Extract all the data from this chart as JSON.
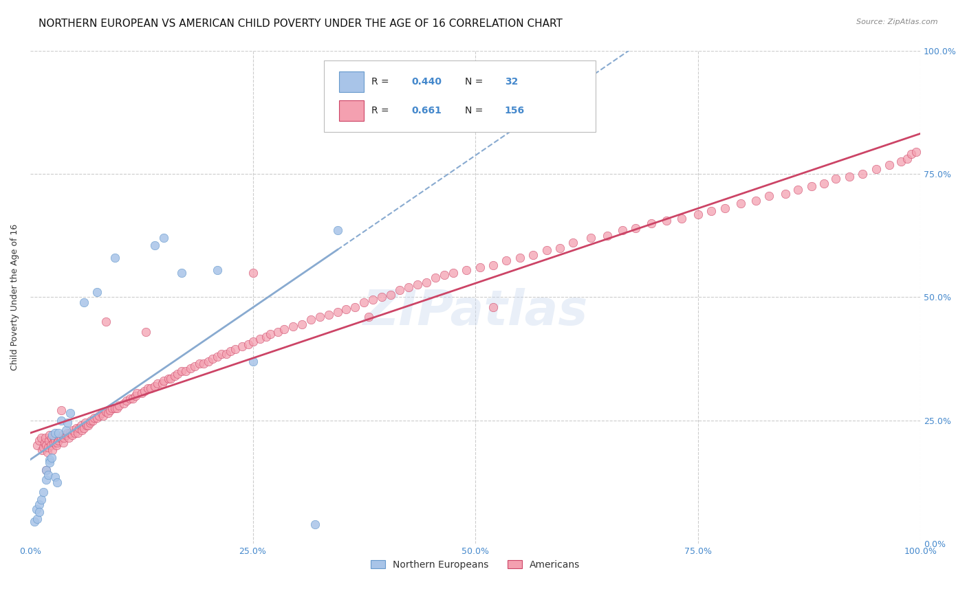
{
  "title": "NORTHERN EUROPEAN VS AMERICAN CHILD POVERTY UNDER THE AGE OF 16 CORRELATION CHART",
  "source": "Source: ZipAtlas.com",
  "ylabel": "Child Poverty Under the Age of 16",
  "xlim": [
    0,
    1
  ],
  "ylim": [
    0,
    1
  ],
  "background_color": "#ffffff",
  "grid_color": "#cccccc",
  "tick_color": "#4488cc",
  "legend_R_color": "#4488cc",
  "title_fontsize": 11,
  "axis_label_fontsize": 9,
  "tick_fontsize": 9,
  "watermark": "ZIPatlas",
  "ne_color": "#a8c4e8",
  "ne_edge_color": "#6699cc",
  "am_color": "#f4a0b0",
  "am_edge_color": "#cc4466",
  "ne_trend_color": "#88aad0",
  "am_trend_color": "#cc4466",
  "ne_x": [
    0.005,
    0.007,
    0.008,
    0.01,
    0.01,
    0.012,
    0.015,
    0.018,
    0.018,
    0.02,
    0.022,
    0.022,
    0.024,
    0.025,
    0.028,
    0.028,
    0.03,
    0.032,
    0.035,
    0.04,
    0.042,
    0.045,
    0.06,
    0.075,
    0.095,
    0.14,
    0.15,
    0.17,
    0.21,
    0.25,
    0.32,
    0.345
  ],
  "ne_y": [
    0.045,
    0.07,
    0.05,
    0.08,
    0.065,
    0.09,
    0.105,
    0.13,
    0.15,
    0.14,
    0.17,
    0.165,
    0.175,
    0.22,
    0.135,
    0.225,
    0.125,
    0.225,
    0.25,
    0.23,
    0.245,
    0.265,
    0.49,
    0.51,
    0.58,
    0.605,
    0.62,
    0.55,
    0.555,
    0.37,
    0.04,
    0.635
  ],
  "am_x": [
    0.008,
    0.01,
    0.012,
    0.013,
    0.015,
    0.016,
    0.017,
    0.018,
    0.019,
    0.02,
    0.021,
    0.022,
    0.023,
    0.024,
    0.025,
    0.026,
    0.027,
    0.028,
    0.029,
    0.03,
    0.032,
    0.033,
    0.035,
    0.036,
    0.037,
    0.038,
    0.04,
    0.042,
    0.043,
    0.045,
    0.047,
    0.048,
    0.05,
    0.052,
    0.053,
    0.055,
    0.057,
    0.058,
    0.06,
    0.062,
    0.063,
    0.065,
    0.067,
    0.068,
    0.07,
    0.072,
    0.075,
    0.077,
    0.08,
    0.082,
    0.085,
    0.087,
    0.09,
    0.092,
    0.095,
    0.097,
    0.1,
    0.105,
    0.108,
    0.112,
    0.115,
    0.118,
    0.12,
    0.125,
    0.128,
    0.132,
    0.135,
    0.14,
    0.143,
    0.148,
    0.15,
    0.155,
    0.158,
    0.162,
    0.165,
    0.17,
    0.175,
    0.18,
    0.185,
    0.19,
    0.195,
    0.2,
    0.205,
    0.21,
    0.215,
    0.22,
    0.225,
    0.23,
    0.238,
    0.245,
    0.25,
    0.258,
    0.265,
    0.27,
    0.278,
    0.285,
    0.295,
    0.305,
    0.315,
    0.325,
    0.335,
    0.345,
    0.355,
    0.365,
    0.375,
    0.385,
    0.395,
    0.405,
    0.415,
    0.425,
    0.435,
    0.445,
    0.455,
    0.465,
    0.475,
    0.49,
    0.505,
    0.52,
    0.535,
    0.55,
    0.565,
    0.58,
    0.595,
    0.61,
    0.63,
    0.648,
    0.665,
    0.68,
    0.698,
    0.715,
    0.732,
    0.75,
    0.765,
    0.78,
    0.798,
    0.815,
    0.83,
    0.848,
    0.862,
    0.878,
    0.892,
    0.905,
    0.92,
    0.935,
    0.95,
    0.965,
    0.978,
    0.985,
    0.99,
    0.995,
    0.018,
    0.035,
    0.085,
    0.13,
    0.25,
    0.38,
    0.52
  ],
  "am_y": [
    0.2,
    0.21,
    0.215,
    0.19,
    0.195,
    0.205,
    0.215,
    0.2,
    0.185,
    0.195,
    0.21,
    0.22,
    0.2,
    0.215,
    0.19,
    0.205,
    0.215,
    0.21,
    0.2,
    0.205,
    0.21,
    0.215,
    0.215,
    0.22,
    0.205,
    0.215,
    0.22,
    0.225,
    0.215,
    0.225,
    0.22,
    0.23,
    0.225,
    0.235,
    0.225,
    0.235,
    0.24,
    0.23,
    0.235,
    0.245,
    0.24,
    0.24,
    0.245,
    0.25,
    0.25,
    0.255,
    0.255,
    0.26,
    0.265,
    0.26,
    0.268,
    0.265,
    0.27,
    0.275,
    0.275,
    0.275,
    0.28,
    0.285,
    0.29,
    0.295,
    0.295,
    0.3,
    0.305,
    0.305,
    0.31,
    0.315,
    0.315,
    0.32,
    0.325,
    0.325,
    0.33,
    0.335,
    0.335,
    0.34,
    0.345,
    0.35,
    0.35,
    0.355,
    0.36,
    0.365,
    0.365,
    0.37,
    0.375,
    0.38,
    0.385,
    0.385,
    0.39,
    0.395,
    0.4,
    0.405,
    0.41,
    0.415,
    0.42,
    0.425,
    0.43,
    0.435,
    0.44,
    0.445,
    0.455,
    0.46,
    0.465,
    0.47,
    0.475,
    0.48,
    0.49,
    0.495,
    0.5,
    0.505,
    0.515,
    0.52,
    0.525,
    0.53,
    0.54,
    0.545,
    0.55,
    0.555,
    0.56,
    0.565,
    0.575,
    0.58,
    0.585,
    0.595,
    0.6,
    0.61,
    0.62,
    0.625,
    0.635,
    0.64,
    0.65,
    0.655,
    0.66,
    0.668,
    0.675,
    0.68,
    0.69,
    0.695,
    0.705,
    0.71,
    0.718,
    0.725,
    0.73,
    0.74,
    0.745,
    0.75,
    0.76,
    0.768,
    0.775,
    0.78,
    0.79,
    0.795,
    0.15,
    0.27,
    0.45,
    0.43,
    0.55,
    0.46,
    0.48
  ]
}
